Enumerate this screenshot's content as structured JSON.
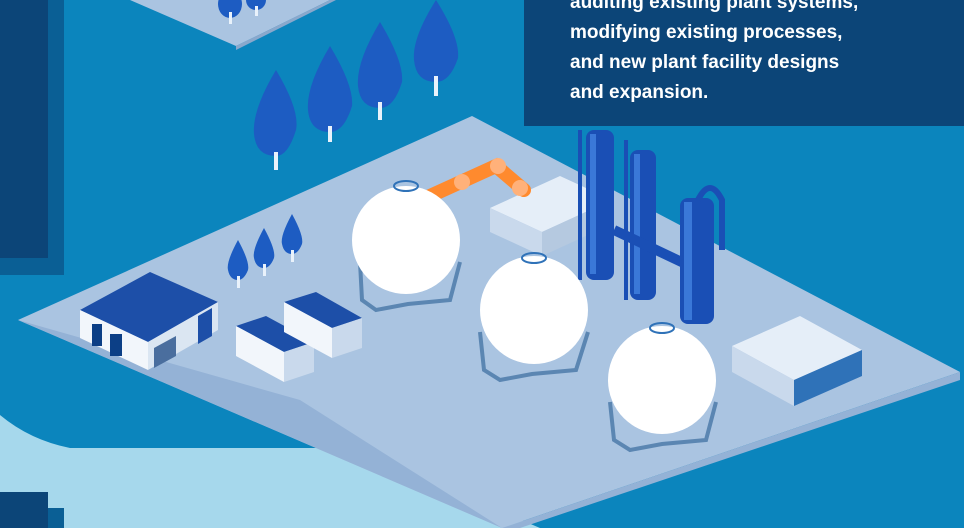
{
  "info_box": {
    "lines": [
      "auditing existing plant systems,",
      "modifying existing processes,",
      "and new plant facility designs",
      "and expansion."
    ]
  },
  "colors": {
    "background": "#0b85bd",
    "dark_navy": "#0c4578",
    "light_blue": "#a6d8ec",
    "plant_ground": "#aac4e1",
    "tank_white": "#ffffff",
    "column_blue": "#1a4fb5",
    "pipe_orange": "#ff8a2e",
    "tree_blue": "#1d5cc2"
  }
}
